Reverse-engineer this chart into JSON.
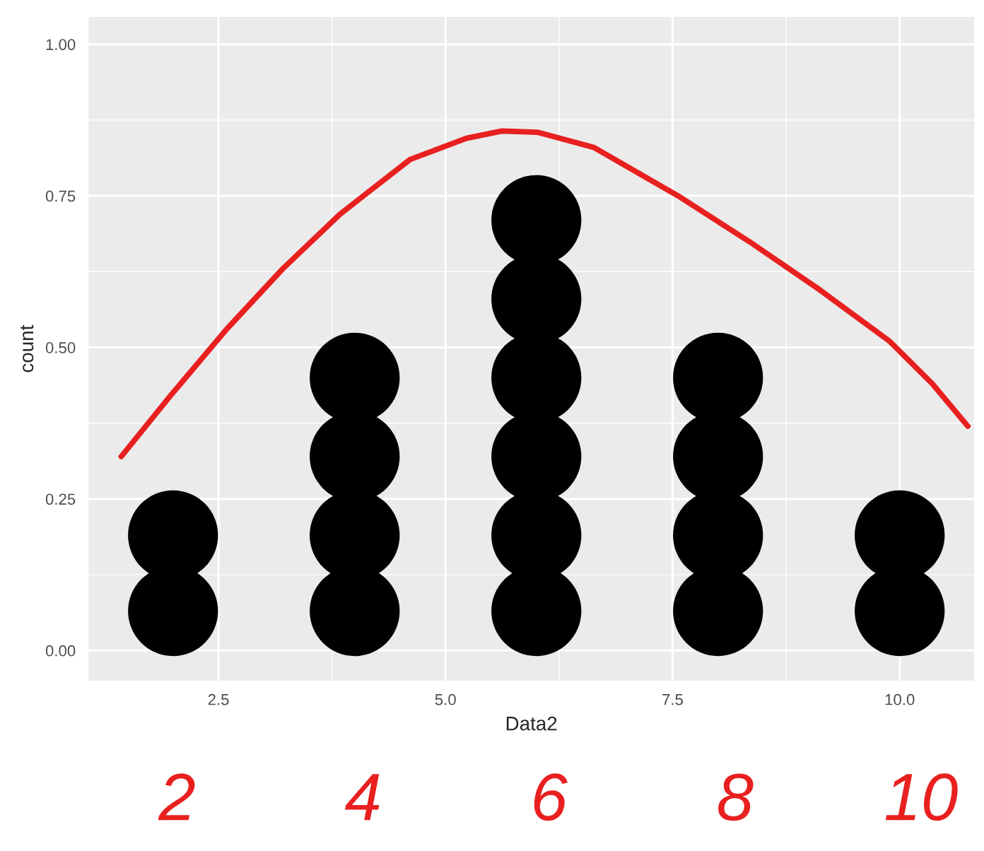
{
  "chart_data": {
    "type": "scatter",
    "xlabel": "Data2",
    "ylabel": "count",
    "xlim": [
      1.07,
      10.82
    ],
    "ylim": [
      -0.05,
      1.045
    ],
    "xticks": [
      {
        "value": 2.5,
        "label": "2.5"
      },
      {
        "value": 5,
        "label": "5.0"
      },
      {
        "value": 7.5,
        "label": "7.5"
      },
      {
        "value": 10,
        "label": "10.0"
      }
    ],
    "yticks": [
      {
        "value": 0,
        "label": "0.00"
      },
      {
        "value": 0.25,
        "label": "0.25"
      },
      {
        "value": 0.5,
        "label": "0.50"
      },
      {
        "value": 0.75,
        "label": "0.75"
      },
      {
        "value": 1,
        "label": "1.00"
      }
    ],
    "grid": true,
    "series": [
      {
        "color": "#000000",
        "marker": "circle",
        "x": [
          2,
          2,
          4,
          4,
          4,
          4,
          6,
          6,
          6,
          6,
          6,
          6,
          8,
          8,
          8,
          8,
          10,
          10
        ],
        "values": [
          0.065,
          0.19,
          0.065,
          0.19,
          0.32,
          0.45,
          0.065,
          0.19,
          0.32,
          0.45,
          0.58,
          0.71,
          0.065,
          0.19,
          0.32,
          0.45,
          0.065,
          0.19
        ]
      },
      {
        "type": "line",
        "color": "#e8201f",
        "marker": "none",
        "line_style": "solid",
        "x": [
          1.43,
          1.97,
          2.59,
          3.21,
          3.84,
          4.61,
          5.23,
          5.62,
          6.01,
          6.63,
          7.56,
          8.34,
          9.12,
          9.89,
          10.36,
          10.75
        ],
        "values": [
          0.32,
          0.42,
          0.53,
          0.63,
          0.72,
          0.81,
          0.845,
          0.857,
          0.855,
          0.83,
          0.75,
          0.675,
          0.595,
          0.51,
          0.44,
          0.37
        ]
      }
    ],
    "annotations": [
      "2",
      "4",
      "6",
      "8",
      "10"
    ]
  }
}
